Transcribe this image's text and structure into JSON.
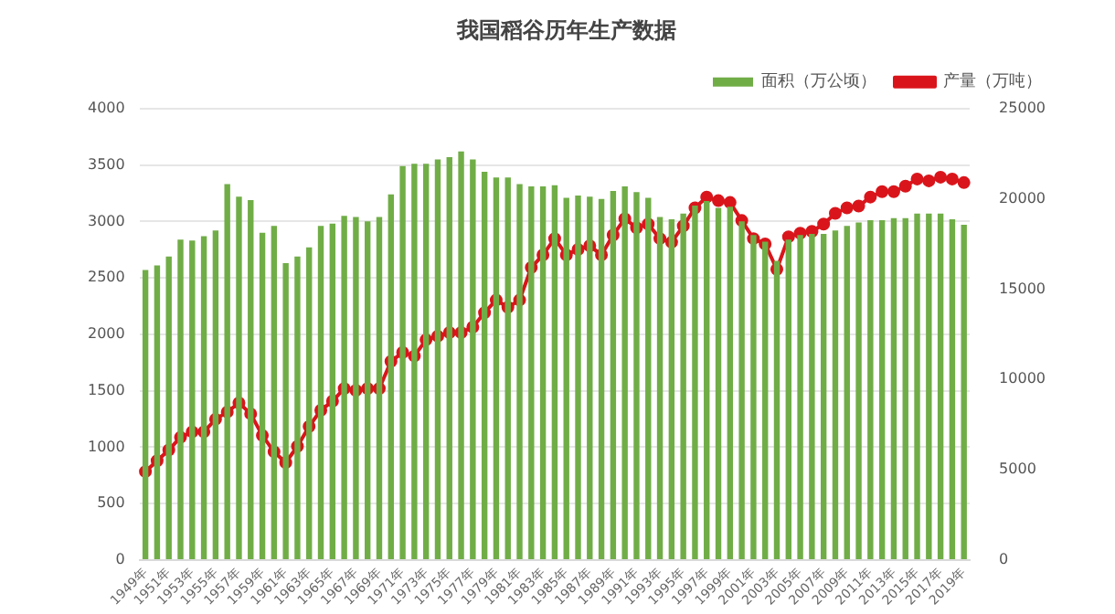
{
  "chart_data": {
    "type": "bar",
    "title": "我国稻谷历年生产数据",
    "categories": [
      "1949年",
      null,
      "1951年",
      null,
      "1953年",
      null,
      "1955年",
      null,
      "1957年",
      null,
      "1959年",
      null,
      "1961年",
      null,
      "1963年",
      null,
      "1965年",
      null,
      "1967年",
      null,
      "1969年",
      null,
      "1971年",
      null,
      "1973年",
      null,
      "1975年",
      null,
      "1977年",
      null,
      "1979年",
      null,
      "1981年",
      null,
      "1983年",
      null,
      "1985年",
      null,
      "1987年",
      null,
      "1989年",
      null,
      "1991年",
      null,
      "1993年",
      null,
      "1995年",
      null,
      "1997年",
      null,
      "1999年",
      null,
      "2001年",
      null,
      "2003年",
      null,
      "2005年",
      null,
      "2007年",
      null,
      "2009年",
      null,
      "2011年",
      null,
      "2013年",
      null,
      "2015年",
      null,
      "2017年",
      null,
      "2019年"
    ],
    "series": [
      {
        "name": "面积（万公顷）",
        "color": "#70ad47",
        "values": [
          2570,
          2610,
          2690,
          2840,
          2830,
          2870,
          2920,
          3330,
          3220,
          3190,
          2900,
          2960,
          2630,
          2690,
          2770,
          2960,
          2980,
          3050,
          3040,
          3000,
          3040,
          3240,
          3490,
          3510,
          3510,
          3550,
          3570,
          3620,
          3550,
          3440,
          3390,
          3390,
          3330,
          3310,
          3310,
          3320,
          3210,
          3230,
          3220,
          3200,
          3270,
          3310,
          3260,
          3210,
          3040,
          3020,
          3070,
          3140,
          3180,
          3120,
          3130,
          3000,
          2880,
          2820,
          2650,
          2840,
          2880,
          2890,
          2890,
          2920,
          2960,
          2990,
          3010,
          3010,
          3030,
          3030,
          3070,
          3070,
          3070,
          3020,
          2970
        ]
      },
      {
        "name": "产量（万吨）",
        "type": "line",
        "axis": "y2",
        "color": "#d9151b",
        "values": [
          4900,
          5500,
          6100,
          6800,
          7100,
          7100,
          7800,
          8200,
          8700,
          8100,
          6900,
          6000,
          5400,
          6300,
          7400,
          8300,
          8800,
          9500,
          9400,
          9500,
          9500,
          11000,
          11500,
          11300,
          12200,
          12400,
          12600,
          12600,
          12900,
          13700,
          14400,
          14000,
          14400,
          16200,
          16900,
          17800,
          16900,
          17200,
          17400,
          16900,
          18000,
          18900,
          18400,
          18600,
          17800,
          17600,
          18500,
          19500,
          20100,
          19900,
          19800,
          18800,
          17800,
          17500,
          16100,
          17900,
          18100,
          18200,
          18600,
          19200,
          19500,
          19600,
          20100,
          20400,
          20400,
          20700,
          21100,
          21000,
          21200,
          21100,
          20900
        ]
      }
    ],
    "ylim": [
      0,
      4000
    ],
    "yticks": [
      0,
      500,
      1000,
      1500,
      2000,
      2500,
      3000,
      3500,
      4000
    ],
    "y2lim": [
      0,
      25000
    ],
    "y2ticks": [
      0,
      5000,
      10000,
      15000,
      20000,
      25000
    ],
    "grid": "y",
    "legend": "top right",
    "marker": "circle",
    "line_style": "solid"
  }
}
